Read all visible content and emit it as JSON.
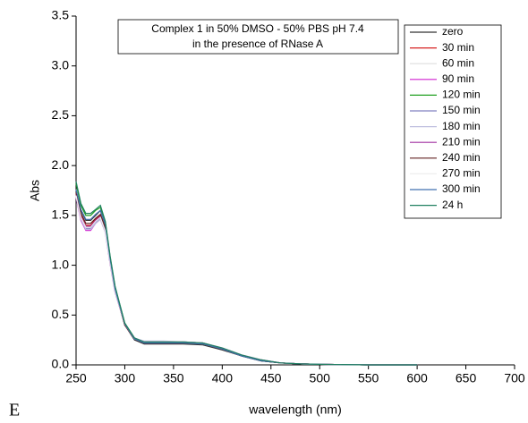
{
  "chart_data": {
    "type": "line",
    "title_lines": [
      "Complex 1 in 50% DMSO - 50% PBS pH 7.4",
      "in the presence of RNase A"
    ],
    "xlabel": "wavelength (nm)",
    "ylabel": "Abs",
    "annotation": "E",
    "x": [
      250,
      255,
      260,
      265,
      270,
      275,
      280,
      285,
      290,
      300,
      310,
      320,
      340,
      360,
      380,
      400,
      420,
      440,
      460,
      480,
      500,
      550,
      600
    ],
    "xlim": [
      250,
      700
    ],
    "xticks": [
      250,
      300,
      350,
      400,
      450,
      500,
      550,
      600,
      650,
      700
    ],
    "ylim": [
      0,
      3.5
    ],
    "yticks": [
      {
        "value": 0,
        "label": "0.0"
      },
      {
        "value": 0.5,
        "label": "0.5"
      },
      {
        "value": 1,
        "label": "1.0"
      },
      {
        "value": 1.5,
        "label": "1.5"
      },
      {
        "value": 2,
        "label": "2.0"
      },
      {
        "value": 2.5,
        "label": "2.5"
      },
      {
        "value": 3,
        "label": "3.0"
      },
      {
        "value": 3.5,
        "label": "3.5"
      }
    ],
    "grid": false,
    "legend": "upper right",
    "series": [
      {
        "name": "zero",
        "color": "#333333",
        "values": [
          1.75,
          1.55,
          1.45,
          1.45,
          1.5,
          1.55,
          1.4,
          1.05,
          0.75,
          0.4,
          0.25,
          0.21,
          0.21,
          0.21,
          0.2,
          0.15,
          0.09,
          0.04,
          0.02,
          0.01,
          0.005,
          0,
          0
        ]
      },
      {
        "name": "30 min",
        "color": "#d62020",
        "values": [
          1.72,
          1.5,
          1.4,
          1.4,
          1.46,
          1.5,
          1.36,
          1.03,
          0.74,
          0.4,
          0.26,
          0.22,
          0.22,
          0.22,
          0.21,
          0.16,
          0.09,
          0.04,
          0.02,
          0.01,
          0.005,
          0,
          0
        ]
      },
      {
        "name": "60 min",
        "color": "#dddddd",
        "values": [
          1.7,
          1.48,
          1.38,
          1.38,
          1.44,
          1.48,
          1.35,
          1.02,
          0.74,
          0.41,
          0.26,
          0.23,
          0.23,
          0.23,
          0.21,
          0.16,
          0.1,
          0.05,
          0.02,
          0.01,
          0.005,
          0,
          0
        ]
      },
      {
        "name": "90 min",
        "color": "#d020d0",
        "values": [
          1.68,
          1.45,
          1.35,
          1.35,
          1.42,
          1.46,
          1.33,
          1.01,
          0.73,
          0.41,
          0.27,
          0.23,
          0.23,
          0.23,
          0.22,
          0.17,
          0.1,
          0.05,
          0.02,
          0.01,
          0.005,
          0,
          0
        ]
      },
      {
        "name": "120 min",
        "color": "#20a020",
        "values": [
          1.82,
          1.6,
          1.5,
          1.5,
          1.55,
          1.58,
          1.43,
          1.08,
          0.78,
          0.42,
          0.27,
          0.23,
          0.23,
          0.22,
          0.21,
          0.16,
          0.09,
          0.04,
          0.02,
          0.01,
          0.005,
          0,
          0
        ]
      },
      {
        "name": "150 min",
        "color": "#8080c0",
        "values": [
          1.7,
          1.47,
          1.37,
          1.37,
          1.43,
          1.47,
          1.34,
          1.02,
          0.74,
          0.41,
          0.26,
          0.23,
          0.23,
          0.23,
          0.22,
          0.17,
          0.1,
          0.05,
          0.02,
          0.01,
          0.005,
          0,
          0
        ]
      },
      {
        "name": "180 min",
        "color": "#c0c0e0",
        "values": [
          1.69,
          1.46,
          1.36,
          1.36,
          1.42,
          1.46,
          1.33,
          1.01,
          0.73,
          0.41,
          0.27,
          0.24,
          0.24,
          0.23,
          0.22,
          0.17,
          0.1,
          0.05,
          0.02,
          0.01,
          0.005,
          0,
          0
        ]
      },
      {
        "name": "210 min",
        "color": "#a030a0",
        "values": [
          1.71,
          1.49,
          1.39,
          1.39,
          1.45,
          1.49,
          1.35,
          1.02,
          0.74,
          0.41,
          0.26,
          0.23,
          0.23,
          0.23,
          0.22,
          0.16,
          0.1,
          0.05,
          0.02,
          0.01,
          0.005,
          0,
          0
        ]
      },
      {
        "name": "240 min",
        "color": "#602020",
        "values": [
          1.73,
          1.52,
          1.42,
          1.42,
          1.47,
          1.51,
          1.37,
          1.04,
          0.75,
          0.4,
          0.26,
          0.22,
          0.22,
          0.22,
          0.21,
          0.16,
          0.09,
          0.04,
          0.02,
          0.01,
          0.005,
          0,
          0
        ]
      },
      {
        "name": "270 min",
        "color": "#eeeeee",
        "values": [
          1.7,
          1.48,
          1.38,
          1.38,
          1.44,
          1.48,
          1.34,
          1.02,
          0.74,
          0.41,
          0.26,
          0.23,
          0.23,
          0.23,
          0.22,
          0.17,
          0.1,
          0.05,
          0.02,
          0.01,
          0.005,
          0,
          0
        ]
      },
      {
        "name": "300 min",
        "color": "#4070b0",
        "values": [
          1.76,
          1.56,
          1.46,
          1.46,
          1.51,
          1.55,
          1.41,
          1.06,
          0.76,
          0.41,
          0.26,
          0.22,
          0.22,
          0.22,
          0.21,
          0.16,
          0.09,
          0.04,
          0.02,
          0.01,
          0.005,
          0,
          0
        ]
      },
      {
        "name": "24 h",
        "color": "#208060",
        "values": [
          1.84,
          1.62,
          1.52,
          1.52,
          1.56,
          1.6,
          1.44,
          1.09,
          0.79,
          0.42,
          0.27,
          0.23,
          0.23,
          0.23,
          0.22,
          0.17,
          0.1,
          0.05,
          0.02,
          0.01,
          0.005,
          0,
          0
        ]
      }
    ]
  }
}
